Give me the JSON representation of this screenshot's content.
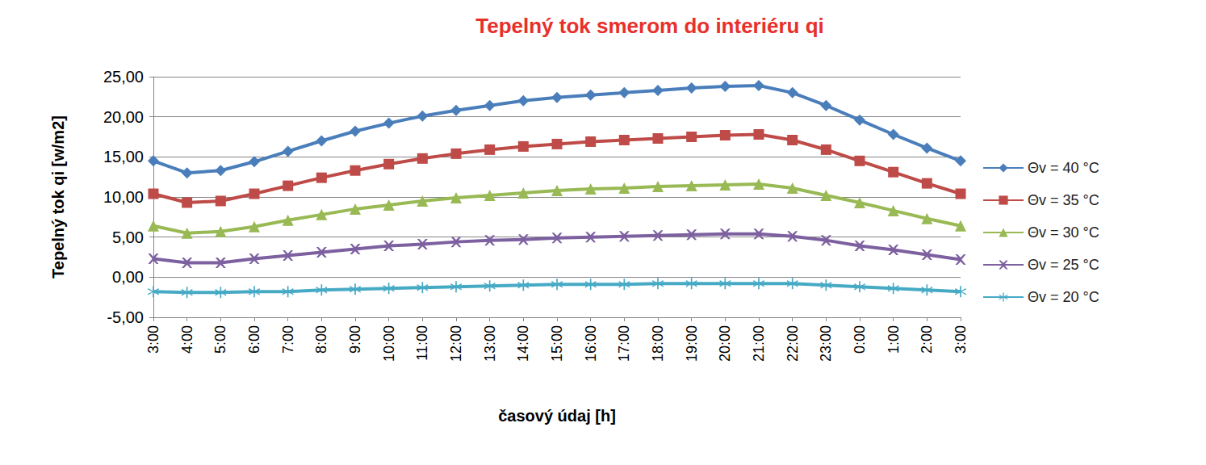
{
  "chart_data": {
    "type": "line",
    "title": "Tepelný tok smerom do interiéru qi",
    "x_label": "časový údaj [h]",
    "y_label": "Tepelný tok qi [w/m2]",
    "categories": [
      "3:00",
      "4:00",
      "5:00",
      "6:00",
      "7:00",
      "8:00",
      "9:00",
      "10:00",
      "11:00",
      "12:00",
      "13:00",
      "14:00",
      "15:00",
      "16:00",
      "17:00",
      "18:00",
      "19:00",
      "20:00",
      "21:00",
      "22:00",
      "23:00",
      "0:00",
      "1:00",
      "2:00",
      "3:00"
    ],
    "series": [
      {
        "name": "Θv = 40 °C",
        "color": "#4a7ebb",
        "marker": "diamond",
        "values": [
          14.5,
          13.0,
          13.3,
          14.4,
          15.7,
          17.0,
          18.2,
          19.2,
          20.1,
          20.8,
          21.4,
          22.0,
          22.4,
          22.7,
          23.0,
          23.3,
          23.6,
          23.8,
          23.9,
          23.0,
          21.4,
          19.6,
          17.8,
          16.1,
          14.5
        ]
      },
      {
        "name": "Θv = 35 °C",
        "color": "#be4b48",
        "marker": "square",
        "values": [
          10.4,
          9.3,
          9.5,
          10.4,
          11.4,
          12.4,
          13.3,
          14.1,
          14.8,
          15.4,
          15.9,
          16.3,
          16.6,
          16.9,
          17.1,
          17.3,
          17.5,
          17.7,
          17.8,
          17.1,
          15.9,
          14.5,
          13.1,
          11.7,
          10.4
        ]
      },
      {
        "name": "Θv = 30 °C",
        "color": "#98b954",
        "marker": "triangle",
        "values": [
          6.4,
          5.5,
          5.7,
          6.3,
          7.1,
          7.8,
          8.5,
          9.0,
          9.5,
          9.9,
          10.2,
          10.5,
          10.8,
          11.0,
          11.1,
          11.3,
          11.4,
          11.5,
          11.6,
          11.1,
          10.2,
          9.3,
          8.3,
          7.3,
          6.4
        ]
      },
      {
        "name": "Θv = 25 °C",
        "color": "#7d60a0",
        "marker": "x",
        "values": [
          2.3,
          1.8,
          1.8,
          2.3,
          2.7,
          3.1,
          3.5,
          3.9,
          4.1,
          4.4,
          4.6,
          4.7,
          4.9,
          5.0,
          5.1,
          5.2,
          5.3,
          5.4,
          5.4,
          5.1,
          4.6,
          3.9,
          3.4,
          2.8,
          2.2
        ]
      },
      {
        "name": "Θv = 20 °C",
        "color": "#46aac5",
        "marker": "asterisk",
        "values": [
          -1.8,
          -1.9,
          -1.9,
          -1.8,
          -1.8,
          -1.6,
          -1.5,
          -1.4,
          -1.3,
          -1.2,
          -1.1,
          -1.0,
          -0.9,
          -0.9,
          -0.9,
          -0.8,
          -0.8,
          -0.8,
          -0.8,
          -0.8,
          -1.0,
          -1.2,
          -1.4,
          -1.6,
          -1.8
        ]
      }
    ],
    "ylim": [
      -5,
      25
    ],
    "yticks": [
      {
        "value": -5,
        "label": "-5,00"
      },
      {
        "value": 0,
        "label": "0,00"
      },
      {
        "value": 5,
        "label": "5,00"
      },
      {
        "value": 10,
        "label": "10,00"
      },
      {
        "value": 15,
        "label": "15,00"
      },
      {
        "value": 20,
        "label": "20,00"
      },
      {
        "value": 25,
        "label": "25,00"
      }
    ],
    "grid": true,
    "legend": "right"
  }
}
